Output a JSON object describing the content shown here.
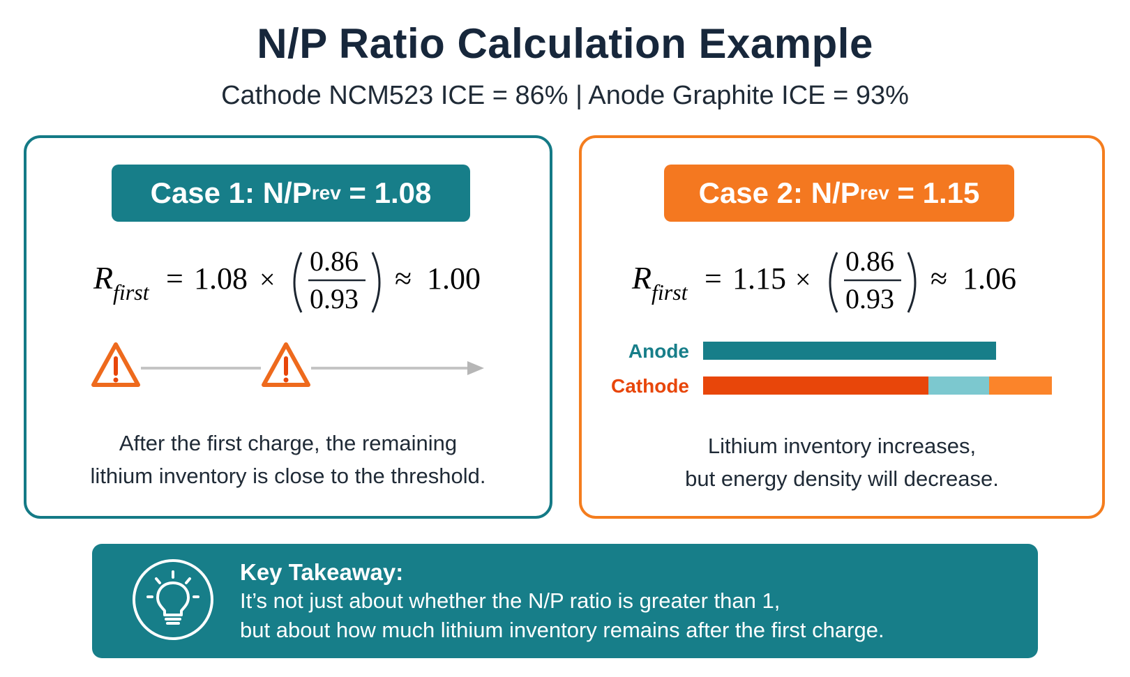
{
  "title": "N/P Ratio Calculation Example",
  "subtitle": "Cathode NCM523 ICE = 86% | Anode Graphite ICE = 93%",
  "case1": {
    "label_main": "Case 1: N/P",
    "label_sub": "rev",
    "label_value": " = 1.08",
    "formula": {
      "lhs": "R",
      "lhs_sub": "first",
      "equals": "=",
      "multiplier": "1.08",
      "times": "×",
      "numerator": "0.86",
      "denominator": "0.93",
      "approx": "≈",
      "result": "1.00"
    },
    "warning_icon": "warning-triangle-icon",
    "note_line1": "After the first charge, the remaining",
    "note_line2": "lithium inventory is close to the threshold."
  },
  "case2": {
    "label_main": "Case 2: N/P",
    "label_sub": "rev",
    "label_value": " = 1.15",
    "formula": {
      "lhs": "R",
      "lhs_sub": "first",
      "equals": "=",
      "multiplier": "1.15",
      "times": "×",
      "numerator": "0.86",
      "denominator": "0.93",
      "approx": "≈",
      "result": "1.06"
    },
    "bars": {
      "anode_label": "Anode",
      "cathode_label": "Cathode",
      "anode_fraction": 0.84,
      "cathode_segments": [
        0.645,
        0.175,
        0.18
      ]
    },
    "note_line1": "Lithium inventory increases,",
    "note_line2": "but energy density will decrease."
  },
  "takeaway": {
    "icon": "lightbulb-icon",
    "title": "Key Takeaway:",
    "line1": "It’s not just about whether the N/P ratio is greater than 1,",
    "line2": "but about how much lithium inventory remains after the first charge."
  },
  "colors": {
    "teal": "#177e89",
    "orange": "#f47820",
    "cathode_red": "#e8460a",
    "light_teal": "#7cc8cf",
    "warning": "#ee6a1d"
  }
}
